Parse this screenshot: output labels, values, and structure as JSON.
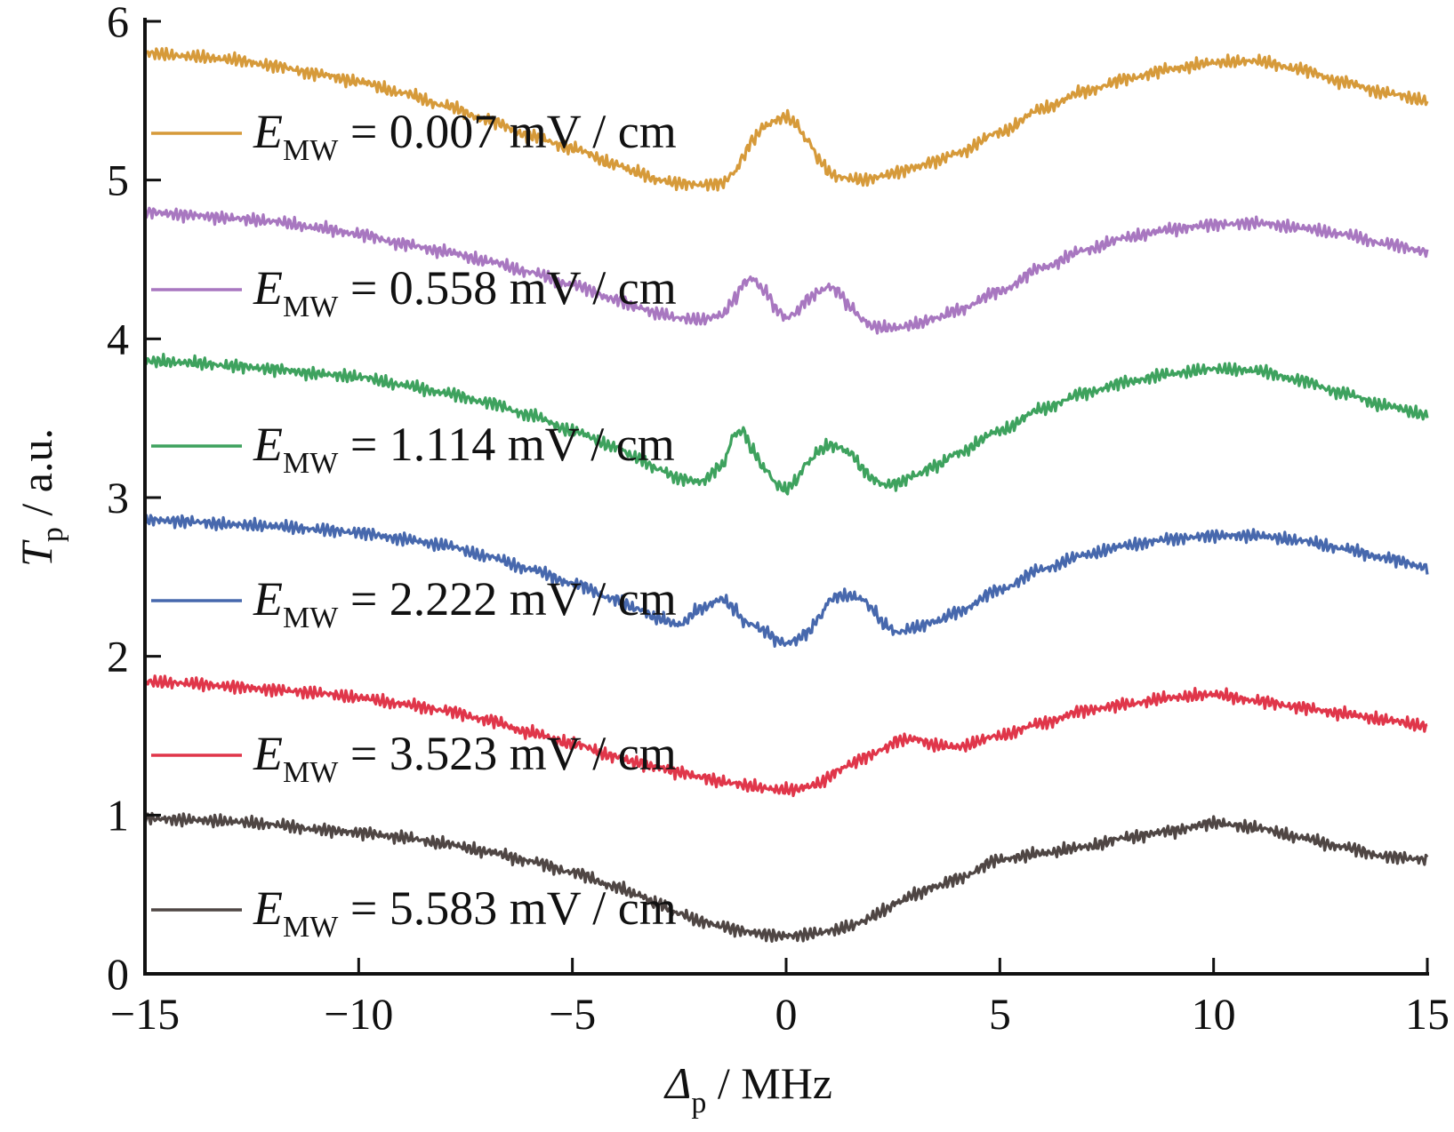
{
  "chart_data": {
    "type": "line",
    "title": "",
    "xlabel": {
      "symbol": "Δ",
      "subscript": "p",
      "unit": " / MHz"
    },
    "ylabel": {
      "symbol": "T",
      "subscript": "p",
      "unit": " / a.u."
    },
    "xlim": [
      -15,
      15
    ],
    "ylim": [
      0,
      6
    ],
    "xticks": [
      -15,
      -10,
      -5,
      0,
      5,
      10,
      15
    ],
    "xtick_labels": [
      "−15",
      "−10",
      "−5",
      "0",
      "5",
      "10",
      "15"
    ],
    "yticks": [
      0,
      1,
      2,
      3,
      4,
      5,
      6
    ],
    "ytick_labels": [
      "0",
      "1",
      "2",
      "3",
      "4",
      "5",
      "6"
    ],
    "grid": false,
    "legend_position": "left, each entry beside its trace",
    "x": [
      -15,
      -14,
      -13,
      -12,
      -11,
      -10,
      -9,
      -8,
      -7,
      -6,
      -5,
      -4,
      -3.5,
      -3,
      -2.5,
      -2,
      -1.5,
      -1.2,
      -1,
      -0.8,
      -0.5,
      -0.2,
      0,
      0.2,
      0.5,
      0.8,
      1,
      1.2,
      1.5,
      1.8,
      2,
      2.3,
      2.6,
      3,
      3.5,
      4,
      5,
      6,
      7,
      8,
      9,
      10,
      11,
      12,
      13,
      14,
      15
    ],
    "series": [
      {
        "name": "E_MW = 0.007 mV / cm",
        "legend_symbol": "E",
        "legend_sub": "MW",
        "legend_value": " = 0.007 mV / cm",
        "color": "#d69a3a",
        "values": [
          5.8,
          5.78,
          5.76,
          5.72,
          5.67,
          5.62,
          5.55,
          5.47,
          5.38,
          5.28,
          5.2,
          5.1,
          5.05,
          5.0,
          4.98,
          4.97,
          4.98,
          5.05,
          5.15,
          5.25,
          5.34,
          5.38,
          5.4,
          5.36,
          5.25,
          5.12,
          5.05,
          5.02,
          5.01,
          5.0,
          5.01,
          5.03,
          5.05,
          5.08,
          5.12,
          5.17,
          5.3,
          5.45,
          5.56,
          5.64,
          5.7,
          5.74,
          5.75,
          5.7,
          5.62,
          5.55,
          5.5
        ]
      },
      {
        "name": "E_MW = 0.558 mV / cm",
        "legend_symbol": "E",
        "legend_sub": "MW",
        "legend_value": " = 0.558 mV / cm",
        "color": "#a877c0",
        "values": [
          4.8,
          4.78,
          4.76,
          4.74,
          4.7,
          4.66,
          4.6,
          4.55,
          4.49,
          4.42,
          4.34,
          4.25,
          4.2,
          4.16,
          4.13,
          4.12,
          4.15,
          4.25,
          4.35,
          4.38,
          4.3,
          4.18,
          4.13,
          4.16,
          4.25,
          4.3,
          4.33,
          4.3,
          4.2,
          4.12,
          4.08,
          4.07,
          4.07,
          4.09,
          4.13,
          4.18,
          4.3,
          4.45,
          4.56,
          4.64,
          4.69,
          4.72,
          4.73,
          4.7,
          4.66,
          4.6,
          4.55
        ]
      },
      {
        "name": "E_MW = 1.114 mV / cm",
        "legend_symbol": "E",
        "legend_sub": "MW",
        "legend_value": " = 1.114 mV / cm",
        "color": "#3ea25e",
        "values": [
          3.86,
          3.85,
          3.83,
          3.81,
          3.78,
          3.76,
          3.71,
          3.66,
          3.6,
          3.52,
          3.42,
          3.32,
          3.25,
          3.18,
          3.12,
          3.1,
          3.2,
          3.4,
          3.42,
          3.3,
          3.18,
          3.08,
          3.05,
          3.1,
          3.22,
          3.3,
          3.33,
          3.32,
          3.28,
          3.18,
          3.12,
          3.08,
          3.09,
          3.14,
          3.2,
          3.28,
          3.42,
          3.56,
          3.66,
          3.73,
          3.78,
          3.81,
          3.8,
          3.74,
          3.66,
          3.58,
          3.52
        ]
      },
      {
        "name": "E_MW = 2.222 mV / cm",
        "legend_symbol": "E",
        "legend_sub": "MW",
        "legend_value": " = 2.222 mV / cm",
        "color": "#4768ad",
        "values": [
          2.86,
          2.85,
          2.83,
          2.82,
          2.8,
          2.78,
          2.74,
          2.7,
          2.63,
          2.55,
          2.46,
          2.36,
          2.3,
          2.24,
          2.2,
          2.3,
          2.36,
          2.3,
          2.22,
          2.2,
          2.16,
          2.1,
          2.08,
          2.1,
          2.15,
          2.25,
          2.35,
          2.38,
          2.38,
          2.36,
          2.3,
          2.2,
          2.15,
          2.18,
          2.22,
          2.28,
          2.42,
          2.55,
          2.64,
          2.7,
          2.74,
          2.76,
          2.76,
          2.73,
          2.68,
          2.62,
          2.56
        ]
      },
      {
        "name": "E_MW = 3.523 mV / cm",
        "legend_symbol": "E",
        "legend_sub": "MW",
        "legend_value": " = 3.523 mV / cm",
        "color": "#e0364a",
        "values": [
          1.84,
          1.83,
          1.81,
          1.79,
          1.77,
          1.74,
          1.7,
          1.66,
          1.6,
          1.52,
          1.45,
          1.37,
          1.33,
          1.3,
          1.27,
          1.24,
          1.21,
          1.2,
          1.19,
          1.18,
          1.17,
          1.16,
          1.16,
          1.16,
          1.18,
          1.2,
          1.24,
          1.28,
          1.32,
          1.36,
          1.38,
          1.42,
          1.47,
          1.48,
          1.44,
          1.43,
          1.5,
          1.58,
          1.66,
          1.7,
          1.74,
          1.76,
          1.72,
          1.68,
          1.64,
          1.6,
          1.56
        ]
      },
      {
        "name": "E_MW = 5.583 mV / cm",
        "legend_symbol": "E",
        "legend_sub": "MW",
        "legend_value": " = 5.583 mV / cm",
        "color": "#4f4644",
        "values": [
          0.98,
          0.97,
          0.96,
          0.94,
          0.91,
          0.89,
          0.86,
          0.82,
          0.77,
          0.71,
          0.64,
          0.55,
          0.5,
          0.44,
          0.38,
          0.33,
          0.3,
          0.28,
          0.27,
          0.26,
          0.25,
          0.24,
          0.24,
          0.24,
          0.25,
          0.26,
          0.27,
          0.28,
          0.3,
          0.33,
          0.36,
          0.4,
          0.45,
          0.5,
          0.55,
          0.6,
          0.72,
          0.76,
          0.8,
          0.86,
          0.9,
          0.95,
          0.92,
          0.86,
          0.8,
          0.74,
          0.72
        ]
      }
    ]
  }
}
